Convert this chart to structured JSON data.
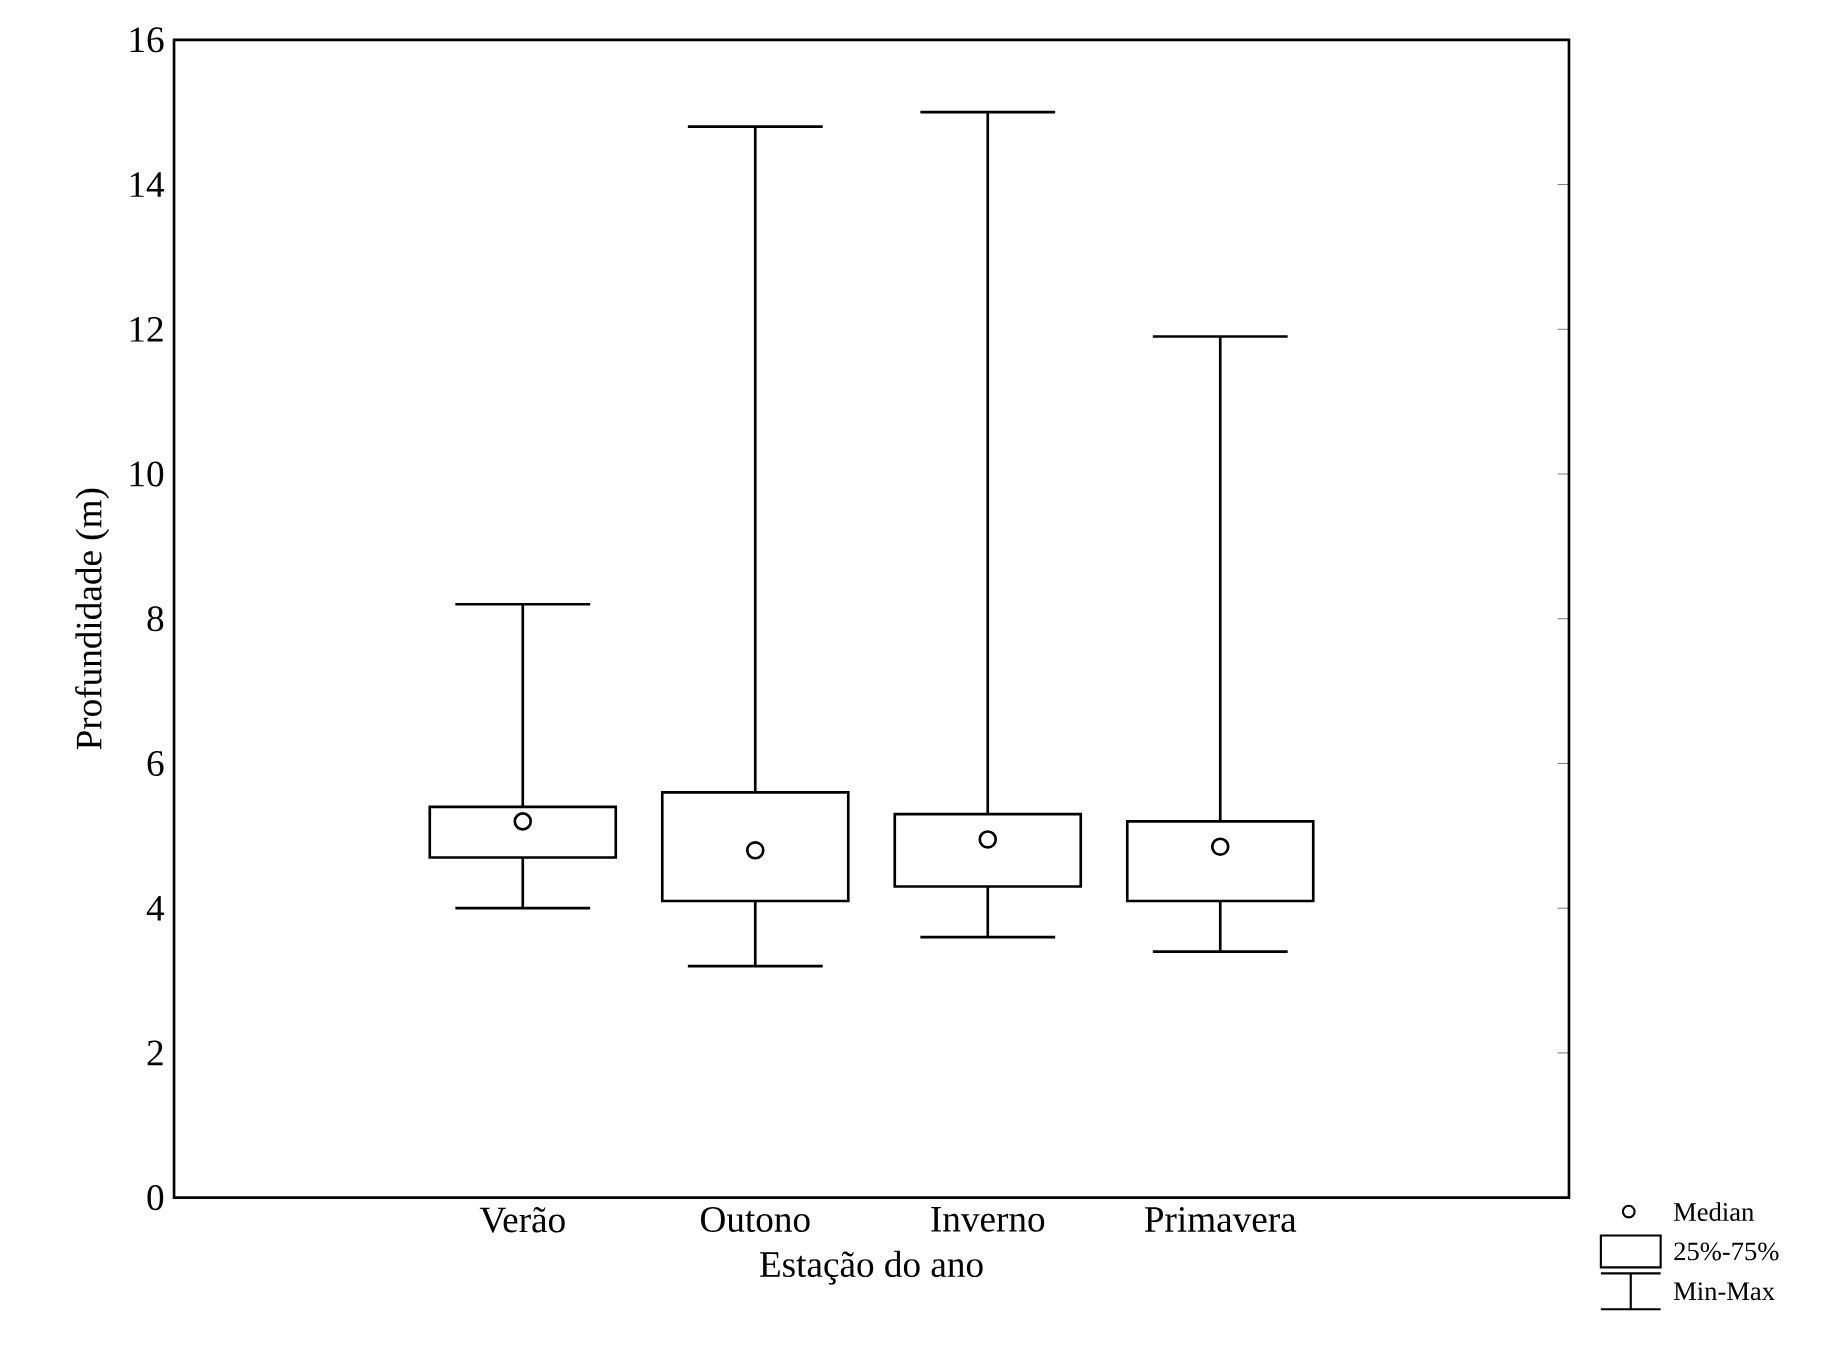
{
  "chart_data": {
    "type": "box",
    "xlabel": "Estação do ano",
    "ylabel": "Profundidade (m)",
    "categories": [
      "Verão",
      "Outono",
      "Inverno",
      "Primavera"
    ],
    "boxes": [
      {
        "low": 4.0,
        "q1": 4.7,
        "median": 5.2,
        "q3": 5.4,
        "high": 8.2
      },
      {
        "low": 3.2,
        "q1": 4.1,
        "median": 4.8,
        "q3": 5.6,
        "high": 14.8
      },
      {
        "low": 3.6,
        "q1": 4.3,
        "median": 4.95,
        "q3": 5.3,
        "high": 15.0
      },
      {
        "low": 3.4,
        "q1": 4.1,
        "median": 4.85,
        "q3": 5.2,
        "high": 11.9
      }
    ],
    "color": "#000000",
    "ylim": [
      0,
      16
    ],
    "yticks": [
      0,
      2,
      4,
      6,
      8,
      10,
      12,
      14,
      16
    ],
    "grid": false,
    "marker": "circle",
    "annotations": [
      "Median",
      "25%-75%",
      "Min-Max"
    ]
  }
}
